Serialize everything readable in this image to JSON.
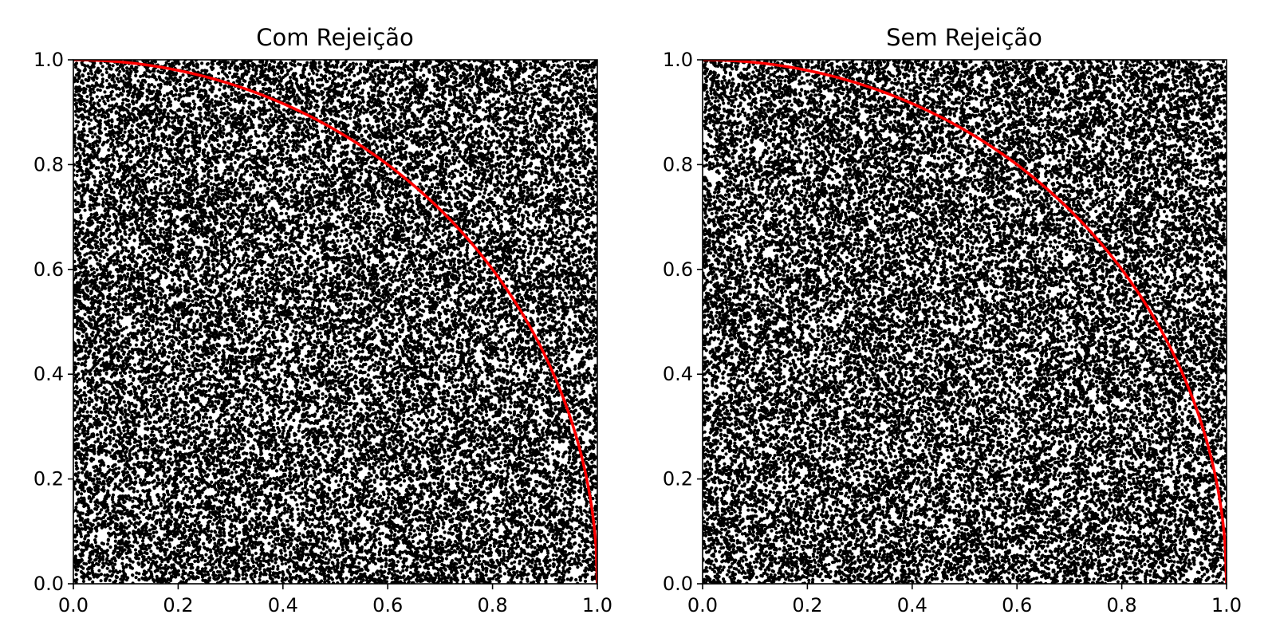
{
  "chart_data": [
    {
      "type": "scatter",
      "title": "Com Rejeição",
      "xlabel": "",
      "ylabel": "",
      "xlim": [
        0.0,
        1.0
      ],
      "ylim": [
        0.0,
        1.0
      ],
      "x_ticks": [
        "0.0",
        "0.2",
        "0.4",
        "0.6",
        "0.8",
        "1.0"
      ],
      "y_ticks": [
        "0.0",
        "0.2",
        "0.4",
        "0.6",
        "0.8",
        "1.0"
      ],
      "grid": false,
      "series": [
        {
          "kind": "points",
          "color": "#000000",
          "distribution": "uniform",
          "x_range": [
            0.0,
            1.0
          ],
          "y_range": [
            0.0,
            1.0
          ],
          "approx_count": 30000
        },
        {
          "kind": "curve",
          "color": "#ff0000",
          "equation": "x^2 + y^2 = 1",
          "x_range": [
            0.0,
            1.0
          ]
        }
      ]
    },
    {
      "type": "scatter",
      "title": "Sem Rejeição",
      "xlabel": "",
      "ylabel": "",
      "xlim": [
        0.0,
        1.0
      ],
      "ylim": [
        0.0,
        1.0
      ],
      "x_ticks": [
        "0.0",
        "0.2",
        "0.4",
        "0.6",
        "0.8",
        "1.0"
      ],
      "y_ticks": [
        "0.0",
        "0.2",
        "0.4",
        "0.6",
        "0.8",
        "1.0"
      ],
      "grid": false,
      "series": [
        {
          "kind": "points",
          "color": "#000000",
          "distribution": "uniform",
          "x_range": [
            0.0,
            1.0
          ],
          "y_range": [
            0.0,
            1.0
          ],
          "approx_count": 30000
        },
        {
          "kind": "curve",
          "color": "#ff0000",
          "equation": "x^2 + y^2 = 1",
          "x_range": [
            0.0,
            1.0
          ]
        }
      ]
    }
  ]
}
